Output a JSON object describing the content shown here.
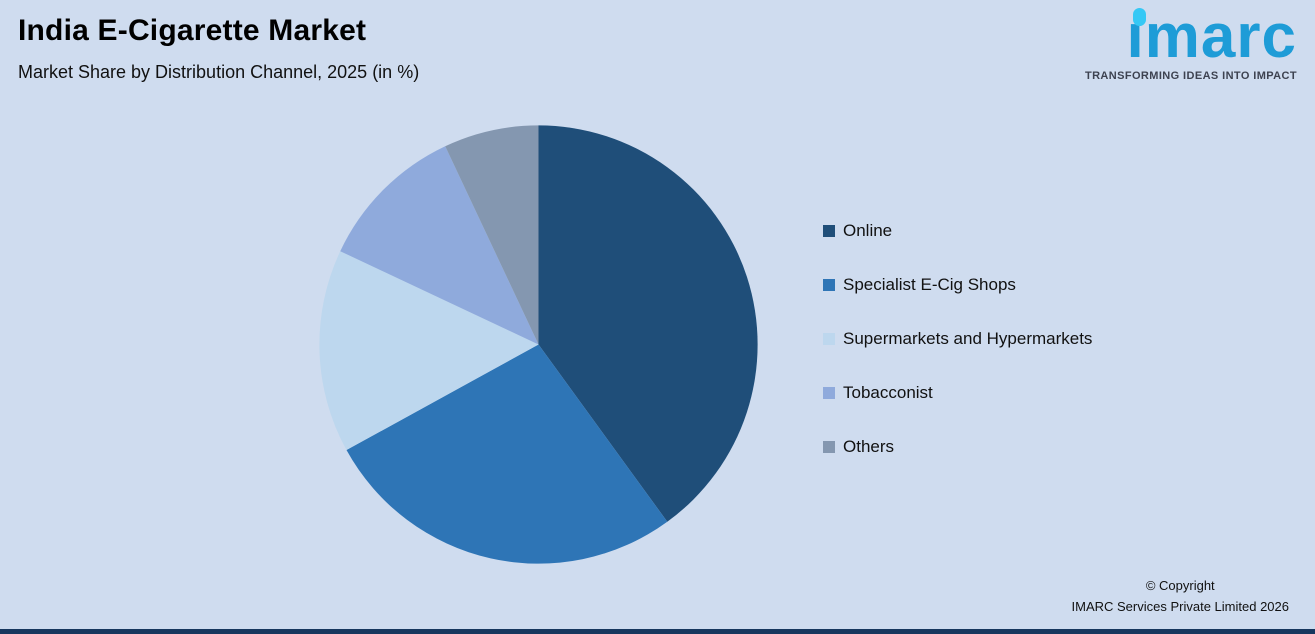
{
  "header": {
    "title": "India E-Cigarette Market",
    "subtitle": "Market Share by Distribution Channel, 2025 (in %)"
  },
  "logo": {
    "text": "ımarc",
    "tagline": "TRANSFORMING IDEAS INTO IMPACT"
  },
  "chart_data": {
    "type": "pie",
    "title": "India E-Cigarette Market — Market Share by Distribution Channel, 2025 (in %)",
    "unit": "percent",
    "start_angle_deg": -90,
    "direction": "clockwise",
    "legend_position": "right",
    "data_labels_shown": false,
    "series": [
      {
        "name": "Online",
        "value": 40,
        "color": "#1f4e79"
      },
      {
        "name": "Specialist E-Cig Shops",
        "value": 27,
        "color": "#2e75b6"
      },
      {
        "name": "Supermarkets and Hypermarkets",
        "value": 15,
        "color": "#bdd7ee"
      },
      {
        "name": "Tobacconist",
        "value": 11,
        "color": "#8faadc"
      },
      {
        "name": "Others",
        "value": 7,
        "color": "#8497b0"
      }
    ],
    "background_color": "#cfdcef"
  },
  "footer": {
    "copyright_line1": "© Copyright",
    "copyright_line2": "IMARC Services Private Limited 2026"
  }
}
